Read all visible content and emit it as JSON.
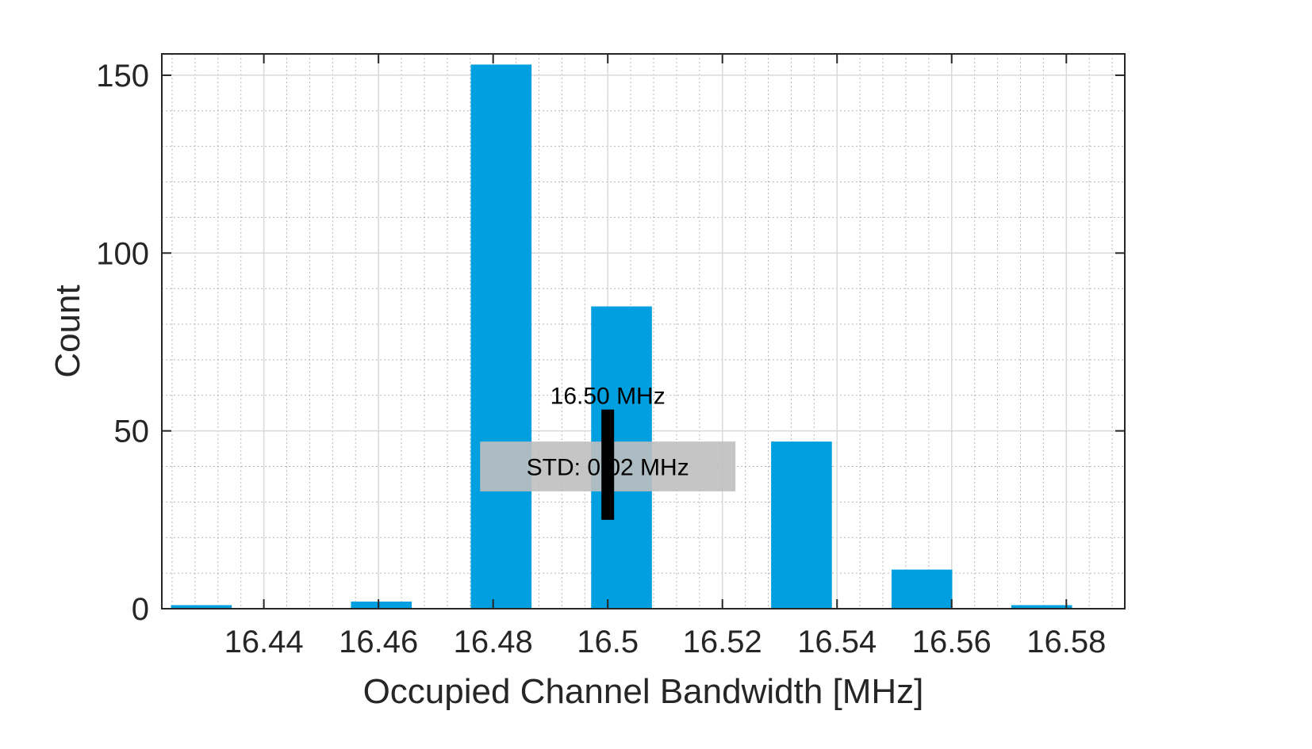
{
  "chart_data": {
    "type": "bar",
    "title": "",
    "xlabel": "Occupied Channel Bandwidth [MHz]",
    "ylabel": "Count",
    "xlim": [
      16.4222,
      16.5902
    ],
    "ylim": [
      0,
      156
    ],
    "grid": true,
    "minor_grid": true,
    "bin_width": 0.0106,
    "x_ticks": [
      16.44,
      16.46,
      16.48,
      16.5,
      16.52,
      16.54,
      16.56,
      16.58
    ],
    "x_tick_labels": [
      "16.44",
      "16.46",
      "16.48",
      "16.5",
      "16.52",
      "16.54",
      "16.56",
      "16.58"
    ],
    "y_ticks": [
      0,
      50,
      100,
      150
    ],
    "y_tick_labels": [
      "0",
      "50",
      "100",
      "150"
    ],
    "bars": [
      {
        "x": 16.4291,
        "value": 1
      },
      {
        "x": 16.4605,
        "value": 2
      },
      {
        "x": 16.4814,
        "value": 153
      },
      {
        "x": 16.5024,
        "value": 85
      },
      {
        "x": 16.5338,
        "value": 47
      },
      {
        "x": 16.5548,
        "value": 11
      },
      {
        "x": 16.5757,
        "value": 1
      }
    ],
    "bar_color": "#009FDF",
    "annotations": {
      "mean_label": "16.50 MHz",
      "mean_x": 16.5,
      "mean_marker_range": [
        25,
        56
      ],
      "std_label": "STD: 0.02 MHz",
      "std_box_range": [
        33,
        47
      ]
    }
  }
}
